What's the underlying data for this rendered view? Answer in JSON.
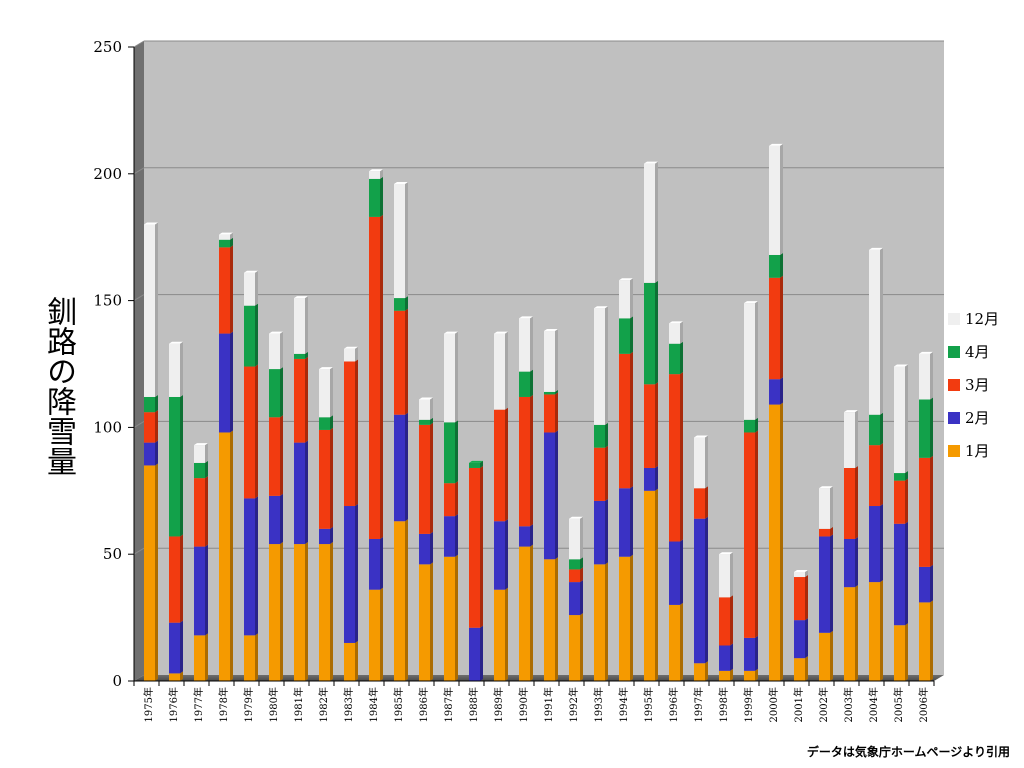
{
  "chart_data": {
    "type": "bar",
    "stacked": true,
    "ylabel": "釧路の降雪量",
    "xlabel": "",
    "ylim": [
      0,
      250
    ],
    "yticks": [
      0,
      50,
      100,
      150,
      200,
      250
    ],
    "grid": true,
    "legend_position": "right",
    "categories": [
      "1975年",
      "1976年",
      "1977年",
      "1978年",
      "1979年",
      "1980年",
      "1981年",
      "1982年",
      "1983年",
      "1984年",
      "1985年",
      "1986年",
      "1987年",
      "1988年",
      "1989年",
      "1990年",
      "1991年",
      "1992年",
      "1993年",
      "1994年",
      "1995年",
      "1996年",
      "1997年",
      "1998年",
      "1999年",
      "2000年",
      "2001年",
      "2002年",
      "2003年",
      "2004年",
      "2005年",
      "2006年"
    ],
    "series": [
      {
        "name": "1月",
        "color": "#f59a00",
        "values": [
          85,
          3,
          18,
          98,
          18,
          54,
          54,
          54,
          15,
          36,
          63,
          46,
          49,
          0,
          36,
          53,
          48,
          26,
          46,
          49,
          75,
          30,
          7,
          4,
          4,
          109,
          9,
          19,
          37,
          39,
          22,
          31
        ]
      },
      {
        "name": "2月",
        "color": "#3a32c4",
        "values": [
          9,
          20,
          35,
          39,
          54,
          19,
          40,
          6,
          54,
          20,
          42,
          12,
          16,
          21,
          27,
          8,
          50,
          13,
          25,
          27,
          9,
          25,
          57,
          10,
          13,
          10,
          15,
          38,
          19,
          30,
          40,
          14
        ]
      },
      {
        "name": "3月",
        "color": "#f23b10",
        "values": [
          12,
          34,
          27,
          34,
          52,
          31,
          33,
          39,
          57,
          127,
          41,
          43,
          13,
          63,
          44,
          51,
          15,
          5,
          21,
          53,
          33,
          66,
          12,
          19,
          81,
          40,
          17,
          3,
          28,
          24,
          17,
          43
        ]
      },
      {
        "name": "4月",
        "color": "#12a14a",
        "values": [
          6,
          55,
          6,
          3,
          24,
          19,
          2,
          5,
          0,
          15,
          5,
          2,
          24,
          2,
          0,
          10,
          1,
          4,
          9,
          14,
          40,
          12,
          0,
          0,
          5,
          9,
          0,
          0,
          0,
          12,
          3,
          23
        ]
      },
      {
        "name": "12月",
        "color": "#efefef",
        "values": [
          68,
          21,
          7,
          2,
          13,
          14,
          22,
          19,
          5,
          3,
          45,
          8,
          35,
          0,
          30,
          21,
          24,
          16,
          46,
          15,
          47,
          8,
          20,
          17,
          46,
          43,
          2,
          16,
          22,
          65,
          42,
          18
        ]
      }
    ],
    "source_note": "データは気象庁ホームページより引用"
  }
}
